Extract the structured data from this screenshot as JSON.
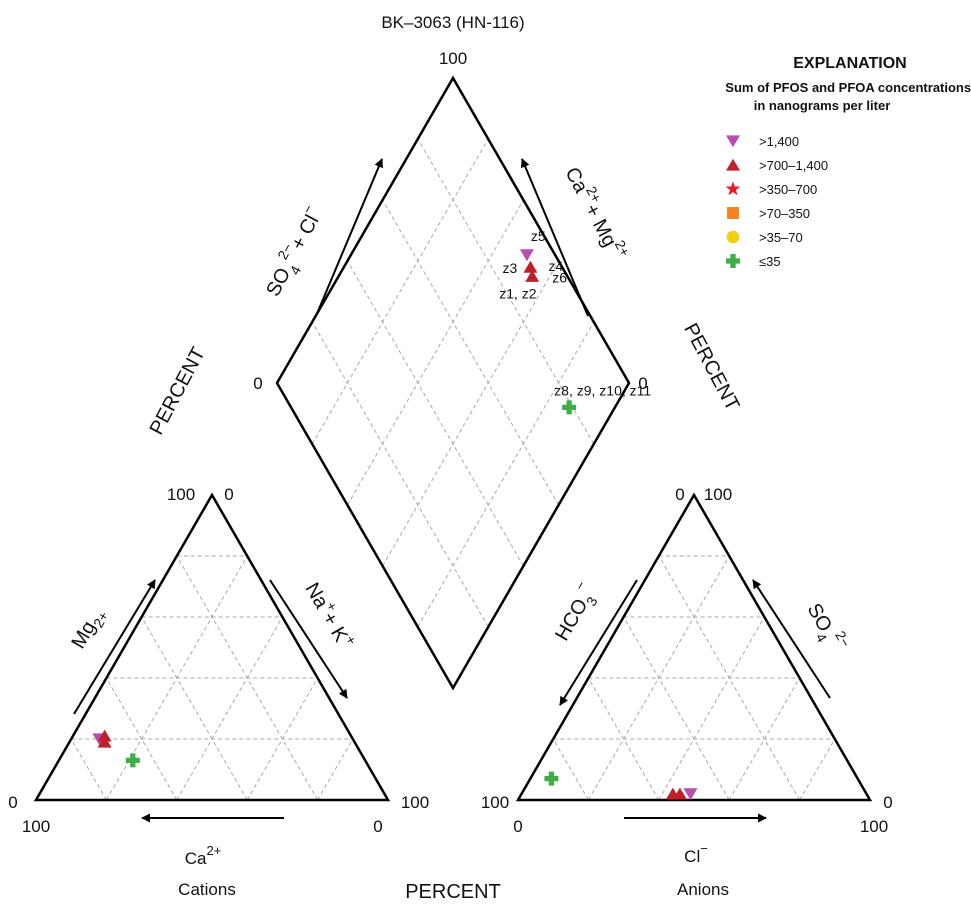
{
  "chart_data": {
    "type": "scatter",
    "title": "BK–3063 (HN-116)",
    "bottom_label": "PERCENT",
    "side_label": "PERCENT",
    "cations": {
      "name": "Cations",
      "axis_bottom": "Ca",
      "axis_bottom_sup": "2+",
      "axis_left_base": "Mg",
      "axis_left_sub": "2+",
      "axis_right": "Na",
      "axis_right_sup": "+",
      "axis_right_2": "+ K",
      "axis_right_2_sup": "+",
      "tick_top_left": "100",
      "tick_top_right": "0",
      "tick_left_upper": "0",
      "tick_left_lower": "100",
      "tick_right_upper": "100",
      "tick_right_lower": "0"
    },
    "anions": {
      "name": "Anions",
      "axis_bottom": "Cl",
      "axis_bottom_sup": "−",
      "axis_left": "HCO",
      "axis_left_sub": "3",
      "axis_left_sup": "−",
      "axis_right": "SO",
      "axis_right_sub": "4",
      "axis_right_sup": "2−",
      "tick_top_left": "0",
      "tick_top_right": "100",
      "tick_left_upper": "100",
      "tick_left_lower": "0",
      "tick_right_upper": "0",
      "tick_right_lower": "100"
    },
    "diamond": {
      "tick_top": "100",
      "tick_left": "0",
      "tick_right": "0",
      "axis_left_so4": "SO",
      "axis_left_so4_sub": "4",
      "axis_left_so4_sup": "2−",
      "axis_left_cl": "+ Cl",
      "axis_left_cl_sup": "−",
      "axis_right_ca": "Ca",
      "axis_right_ca_sup": "2+",
      "axis_right_mg": "+ Mg",
      "axis_right_mg_sup": "2+"
    },
    "legend": {
      "title": "EXPLANATION",
      "subtitle_1": "Sum of PFOS and PFOA concentrations,",
      "subtitle_2": "in nanograms per liter",
      "items": [
        {
          "label": ">1,400",
          "marker": "triangle-down",
          "color": "#b84fb0"
        },
        {
          "label": ">700–1,400",
          "marker": "triangle-up",
          "color": "#c0202a"
        },
        {
          "label": ">350–700",
          "marker": "star",
          "color": "#e41e26"
        },
        {
          "label": ">70–350",
          "marker": "square",
          "color": "#f7821f"
        },
        {
          "label": ">35–70",
          "marker": "circle",
          "color": "#f2cf0f"
        },
        {
          "label": "≤35",
          "marker": "cross",
          "color": "#3fae49"
        }
      ]
    },
    "series": [
      {
        "category": ">1,400",
        "ca": 72,
        "mg": 20,
        "nak": 8,
        "cl": 48,
        "so4": 2,
        "hco3": 50,
        "samples": "z5"
      },
      {
        "category": ">700–1,400",
        "ca": 70,
        "mg": 21,
        "nak": 9,
        "cl": 45,
        "so4": 2,
        "hco3": 53,
        "samples": "z3, z4"
      },
      {
        "category": ">700–1,400",
        "ca": 71,
        "mg": 19,
        "nak": 10,
        "cl": 43,
        "so4": 2,
        "hco3": 55,
        "samples": "z1, z2, z6"
      },
      {
        "category": "≤35",
        "ca": 66,
        "mg": 13,
        "nak": 21,
        "cl": 6,
        "so4": 7,
        "hco3": 87,
        "samples": "z8, z9, z10, z11"
      }
    ],
    "diamond_labels": [
      {
        "text": "z5",
        "anchor_sample": 0
      },
      {
        "text": "z3",
        "anchor_sample": 1
      },
      {
        "text": "z4",
        "anchor_sample": 1
      },
      {
        "text": "z6",
        "anchor_sample": 2
      },
      {
        "text": "z1, z2",
        "anchor_sample": 2
      },
      {
        "text": "z8, z9, z10, z11",
        "anchor_sample": 3
      }
    ]
  }
}
